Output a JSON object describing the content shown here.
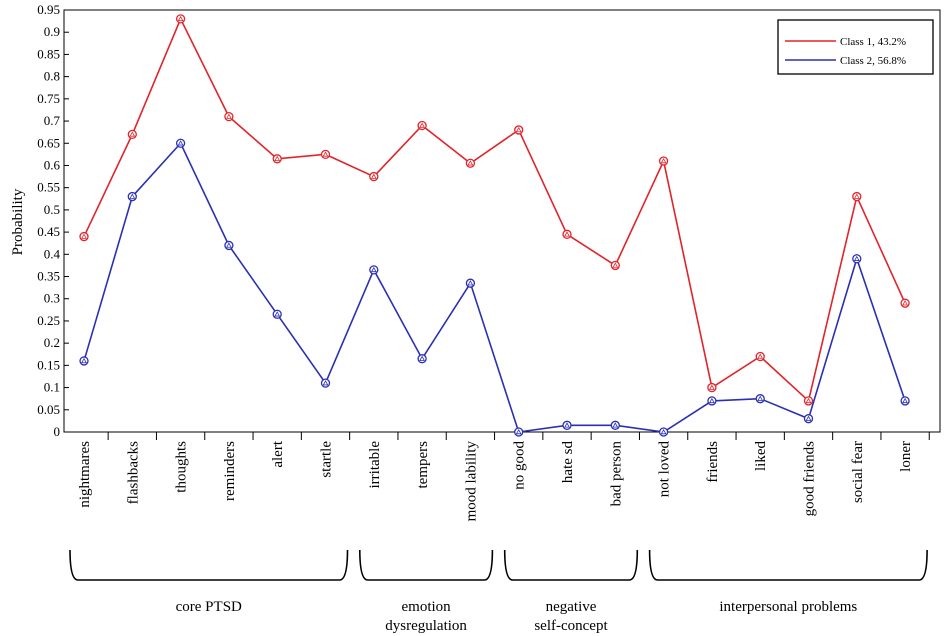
{
  "chart_data": {
    "type": "line",
    "ylabel": "Probability",
    "ylim": [
      0,
      0.95
    ],
    "yticks": [
      "0",
      "0.05",
      "0.1",
      "0.15",
      "0.2",
      "0.25",
      "0.3",
      "0.35",
      "0.4",
      "0.45",
      "0.5",
      "0.55",
      "0.6",
      "0.65",
      "0.7",
      "0.75",
      "0.8",
      "0.85",
      "0.9",
      "0.95"
    ],
    "categories": [
      "nightmares",
      "flashbacks",
      "thoughts",
      "reminders",
      "alert",
      "startle",
      "irritable",
      "tempers",
      "mood lability",
      "no good",
      "hate sd",
      "bad person",
      "not loved",
      "friends",
      "liked",
      "good friends",
      "social fear",
      "loner"
    ],
    "series": [
      {
        "name": "Class 1, 43.2%",
        "color": "#e0242a",
        "values": [
          0.44,
          0.67,
          0.93,
          0.71,
          0.615,
          0.625,
          0.575,
          0.69,
          0.605,
          0.68,
          0.445,
          0.375,
          0.61,
          0.1,
          0.17,
          0.07,
          0.53,
          0.29
        ]
      },
      {
        "name": "Class 2, 56.8%",
        "color": "#2b2fb4",
        "values": [
          0.16,
          0.53,
          0.65,
          0.42,
          0.265,
          0.11,
          0.365,
          0.165,
          0.335,
          0.0,
          0.015,
          0.015,
          0.0,
          0.07,
          0.075,
          0.03,
          0.39,
          0.07
        ]
      }
    ],
    "groups": [
      {
        "label_lines": [
          "core PTSD"
        ],
        "from": 0,
        "to": 5
      },
      {
        "label_lines": [
          "emotion",
          "dysregulation"
        ],
        "from": 6,
        "to": 8
      },
      {
        "label_lines": [
          "negative",
          "self-concept"
        ],
        "from": 9,
        "to": 11
      },
      {
        "label_lines": [
          "interpersonal problems"
        ],
        "from": 12,
        "to": 17
      }
    ],
    "legend_position": "top-right",
    "grid": false
  }
}
